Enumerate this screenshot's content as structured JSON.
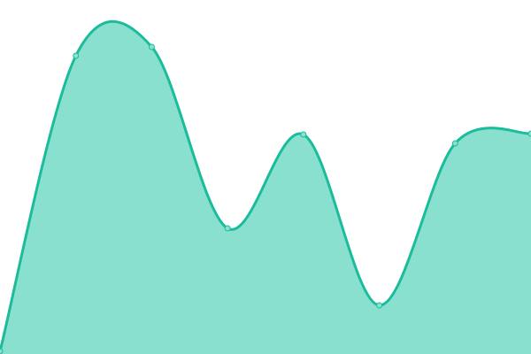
{
  "chart_data": {
    "type": "area",
    "x": [
      0,
      1,
      2,
      3,
      4,
      5,
      6,
      7
    ],
    "values": [
      3,
      337,
      347,
      142,
      248,
      55,
      238,
      249
    ],
    "ylim": [
      0,
      400
    ],
    "grid": false,
    "legend": "none",
    "smooth": true,
    "title": "",
    "xlabel": "",
    "ylabel": ""
  },
  "colors": {
    "line": "#1abc9c",
    "fill": "#8ae0cf",
    "point_fill": "#8ae0cf",
    "point_stroke": "#1abc9c"
  }
}
